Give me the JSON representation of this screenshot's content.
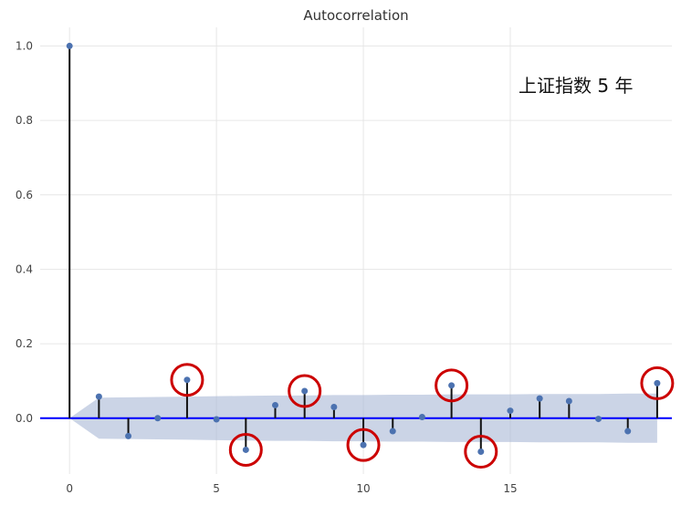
{
  "chart_data": {
    "type": "stem",
    "title": "Autocorrelation",
    "annotation": "上证指数 5 年",
    "xlabel": "",
    "ylabel": "",
    "xlim": [
      -1,
      20.5
    ],
    "ylim": [
      -0.15,
      1.05
    ],
    "x_ticks": [
      0,
      5,
      10,
      15
    ],
    "y_ticks": [
      0.0,
      0.2,
      0.4,
      0.6,
      0.8,
      1.0
    ],
    "y_tick_labels": [
      "0.0",
      "0.2",
      "0.4",
      "0.6",
      "0.8",
      "1.0"
    ],
    "grid": true,
    "lags": [
      0,
      1,
      2,
      3,
      4,
      5,
      6,
      7,
      8,
      9,
      10,
      11,
      12,
      13,
      14,
      15,
      16,
      17,
      18,
      19,
      20
    ],
    "values": [
      1.0,
      0.058,
      -0.048,
      0.0,
      0.103,
      -0.003,
      -0.085,
      0.035,
      0.073,
      0.03,
      -0.072,
      -0.035,
      0.003,
      0.088,
      -0.09,
      0.02,
      0.053,
      0.046,
      -0.002,
      -0.035,
      0.094
    ],
    "confidence_upper": [
      0.0,
      0.055,
      0.056,
      0.057,
      0.058,
      0.059,
      0.06,
      0.061,
      0.061,
      0.062,
      0.062,
      0.063,
      0.063,
      0.064,
      0.064,
      0.064,
      0.065,
      0.065,
      0.065,
      0.066,
      0.066
    ],
    "highlighted_lags": [
      4,
      6,
      8,
      10,
      13,
      14,
      20
    ],
    "colors": {
      "stem": "#111111",
      "marker": "#4c72b0",
      "zero_line": "#0000ff",
      "confidence_band": "#a9b8d6",
      "highlight_circle": "#cc0000",
      "grid": "#e6e6e6",
      "background": "#ffffff"
    }
  }
}
